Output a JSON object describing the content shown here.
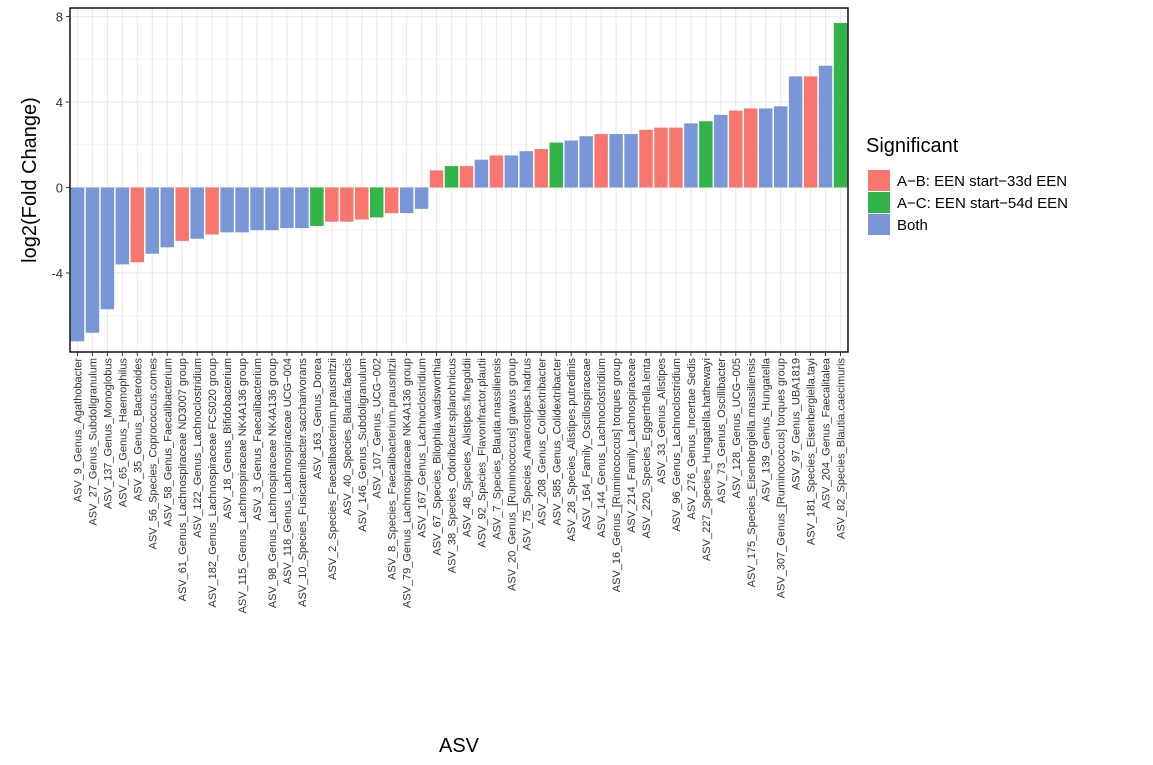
{
  "chart_data": {
    "type": "bar",
    "title": "",
    "xlabel": "ASV",
    "ylabel": "log2(Fold Change)",
    "ylim": [
      -7.7,
      8.4
    ],
    "yticks": [
      -4,
      0,
      4,
      8
    ],
    "grid": true,
    "legend": {
      "title": "Significant",
      "position": "right",
      "entries": [
        {
          "key": "AB",
          "label": "A−B: EEN start−33d EEN",
          "color": "#F8766D"
        },
        {
          "key": "AC",
          "label": "A−C: EEN start−54d EEN",
          "color": "#32B44A"
        },
        {
          "key": "Both",
          "label": "Both",
          "color": "#7997D7"
        }
      ]
    },
    "categories": [
      "ASV_9_Genus_Agathobacter",
      "ASV_27_Genus_Subdoligranulum",
      "ASV_137_Genus_Monoglobus",
      "ASV_65_Genus_Haemophilus",
      "ASV_35_Genus_Bacteroides",
      "ASV_56_Species_Coprococcus.comes",
      "ASV_58_Genus_Faecalibacterium",
      "ASV_61_Genus_Lachnospiraceae ND3007 group",
      "ASV_122_Genus_Lachnoclostridium",
      "ASV_182_Genus_Lachnospiraceae FCS020 group",
      "ASV_18_Genus_Bifidobacterium",
      "ASV_115_Genus_Lachnospiraceae NK4A136 group",
      "ASV_3_Genus_Faecalibacterium",
      "ASV_98_Genus_Lachnospiraceae NK4A136 group",
      "ASV_118_Genus_Lachnospiraceae UCG−004",
      "ASV_10_Species_Fusicatenibacter.saccharivorans",
      "ASV_163_Genus_Dorea",
      "ASV_2_Species_Faecalibacterium.prausnitzii",
      "ASV_40_Species_Blautia.faecis",
      "ASV_146_Genus_Subdoligranulum",
      "ASV_107_Genus_UCG−002",
      "ASV_8_Species_Faecalibacterium.prausnitzii",
      "ASV_79_Genus_Lachnospiraceae NK4A136 group",
      "ASV_167_Genus_Lachnoclostridium",
      "ASV_67_Species_Bilophila.wadsworthia",
      "ASV_38_Species_Odoribacter.splanchnicus",
      "ASV_48_Species_Alistipes.finegoldii",
      "ASV_92_Species_Flavonifractor.plautii",
      "ASV_7_Species_Blautia.massiliensis",
      "ASV_20_Genus_[Ruminococcus] gnavus group",
      "ASV_75_Species_Anaerostipes.hadrus",
      "ASV_208_Genus_Colidextribacter",
      "ASV_585_Genus_Colidextribacter",
      "ASV_28_Species_Alistipes.putredinis",
      "ASV_164_Family_Oscillospiraceae",
      "ASV_144_Genus_Lachnoclostridium",
      "ASV_16_Genus_[Ruminococcus] torques group",
      "ASV_214_Family_Lachnospiraceae",
      "ASV_220_Species_Eggerthella.lenta",
      "ASV_33_Genus_Alistipes",
      "ASV_96_Genus_Lachnoclostridium",
      "ASV_276_Genus_Incertae Sedis",
      "ASV_227_Species_Hungatella.hathewayi",
      "ASV_73_Genus_Oscillibacter",
      "ASV_128_Genus_UCG−005",
      "ASV_175_Species_Eisenbergiella.massiliensis",
      "ASV_139_Genus_Hungatella",
      "ASV_307_Genus_[Ruminococcus] torques group",
      "ASV_97_Genus_UBA1819",
      "ASV_181_Species_Eisenbergiella.tayi",
      "ASV_204_Genus_Faecalitalea",
      "ASV_82_Species_Blautia.caecimuris"
    ],
    "series": [
      {
        "name": "log2(Fold Change)",
        "values": [
          -7.2,
          -6.8,
          -5.7,
          -3.6,
          -3.5,
          -3.1,
          -2.8,
          -2.5,
          -2.4,
          -2.2,
          -2.1,
          -2.1,
          -2.0,
          -2.0,
          -1.9,
          -1.9,
          -1.8,
          -1.6,
          -1.6,
          -1.5,
          -1.4,
          -1.2,
          -1.2,
          -1.0,
          0.8,
          1.0,
          1.0,
          1.3,
          1.5,
          1.5,
          1.7,
          1.8,
          2.1,
          2.2,
          2.4,
          2.5,
          2.5,
          2.5,
          2.7,
          2.8,
          2.8,
          3.0,
          3.1,
          3.4,
          3.6,
          3.7,
          3.7,
          3.8,
          5.2,
          5.2,
          5.7,
          7.7
        ],
        "groups": [
          "Both",
          "Both",
          "Both",
          "Both",
          "AB",
          "Both",
          "Both",
          "AB",
          "Both",
          "AB",
          "Both",
          "Both",
          "Both",
          "Both",
          "Both",
          "Both",
          "AC",
          "AB",
          "AB",
          "AB",
          "AC",
          "AB",
          "Both",
          "Both",
          "AB",
          "AC",
          "AB",
          "Both",
          "AB",
          "Both",
          "Both",
          "AB",
          "AC",
          "Both",
          "Both",
          "AB",
          "Both",
          "Both",
          "AB",
          "AB",
          "AB",
          "Both",
          "AC",
          "Both",
          "AB",
          "AB",
          "Both",
          "Both",
          "Both",
          "AB",
          "Both",
          "AC"
        ]
      }
    ]
  }
}
